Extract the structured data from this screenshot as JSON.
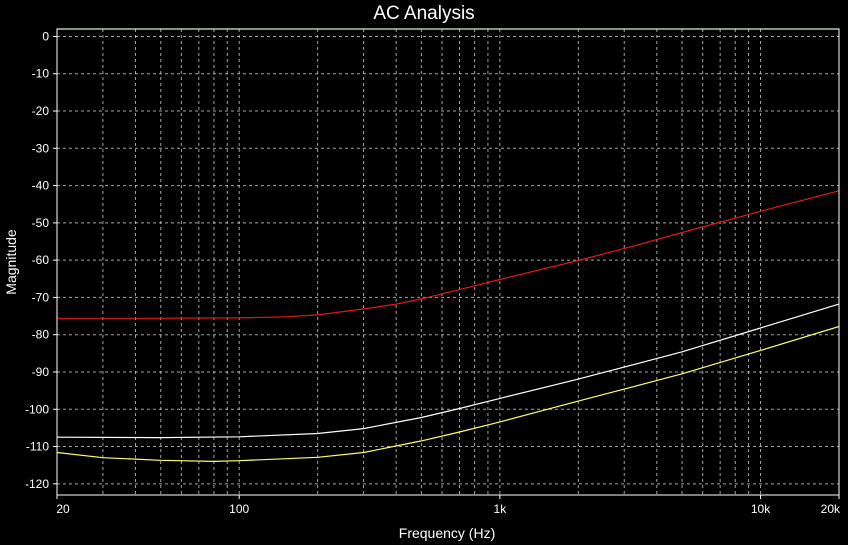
{
  "chart_data": {
    "type": "line",
    "title": "AC Analysis",
    "xlabel": "Frequency (Hz)",
    "ylabel": "Magnitude",
    "xscale": "log",
    "xlim": [
      20,
      20000
    ],
    "ylim": [
      -123,
      2
    ],
    "x_ticks": [
      {
        "value": 20,
        "label": "20"
      },
      {
        "value": 100,
        "label": "100"
      },
      {
        "value": 1000,
        "label": "1k"
      },
      {
        "value": 10000,
        "label": "10k"
      },
      {
        "value": 20000,
        "label": "20k"
      }
    ],
    "y_ticks": [
      {
        "value": 0,
        "label": "0"
      },
      {
        "value": -10,
        "label": "-10"
      },
      {
        "value": -20,
        "label": "-20"
      },
      {
        "value": -30,
        "label": "-30"
      },
      {
        "value": -40,
        "label": "-40"
      },
      {
        "value": -50,
        "label": "-50"
      },
      {
        "value": -60,
        "label": "-60"
      },
      {
        "value": -70,
        "label": "-70"
      },
      {
        "value": -80,
        "label": "-80"
      },
      {
        "value": -90,
        "label": "-90"
      },
      {
        "value": -100,
        "label": "-100"
      },
      {
        "value": -110,
        "label": "-110"
      },
      {
        "value": -120,
        "label": "-120"
      }
    ],
    "grid": true,
    "background_color": "#000000",
    "grid_color": "#d8d8d8",
    "axis_color": "#ffffff",
    "series": [
      {
        "color": "#00cc00",
        "points": [
          [
            20,
            2
          ],
          [
            20000,
            2
          ]
        ]
      },
      {
        "color": "#e01818",
        "points": [
          [
            20,
            -75.6
          ],
          [
            40,
            -75.6
          ],
          [
            100,
            -75.5
          ],
          [
            150,
            -75.2
          ],
          [
            200,
            -74.7
          ],
          [
            300,
            -73.1
          ],
          [
            400,
            -71.8
          ],
          [
            500,
            -70.4
          ],
          [
            700,
            -67.9
          ],
          [
            1000,
            -65.2
          ],
          [
            2000,
            -60.1
          ],
          [
            3000,
            -56.9
          ],
          [
            5000,
            -52.6
          ],
          [
            10000,
            -46.9
          ],
          [
            20000,
            -41.4
          ]
        ]
      },
      {
        "color": "#ffffff",
        "points": [
          [
            20,
            -107.5
          ],
          [
            50,
            -107.6
          ],
          [
            100,
            -107.4
          ],
          [
            200,
            -106.5
          ],
          [
            300,
            -105.2
          ],
          [
            500,
            -102.2
          ],
          [
            700,
            -99.8
          ],
          [
            1000,
            -97.1
          ],
          [
            2000,
            -91.9
          ],
          [
            3000,
            -88.7
          ],
          [
            5000,
            -84.6
          ],
          [
            10000,
            -78.2
          ],
          [
            20000,
            -71.8
          ]
        ]
      },
      {
        "color": "#ffff66",
        "points": [
          [
            20,
            -111.6
          ],
          [
            30,
            -113.0
          ],
          [
            50,
            -113.7
          ],
          [
            80,
            -114.0
          ],
          [
            100,
            -113.8
          ],
          [
            200,
            -112.9
          ],
          [
            300,
            -111.6
          ],
          [
            500,
            -108.5
          ],
          [
            700,
            -106.1
          ],
          [
            1000,
            -103.4
          ],
          [
            2000,
            -97.8
          ],
          [
            3000,
            -94.6
          ],
          [
            5000,
            -90.5
          ],
          [
            10000,
            -84.2
          ],
          [
            20000,
            -77.8
          ]
        ]
      }
    ]
  }
}
